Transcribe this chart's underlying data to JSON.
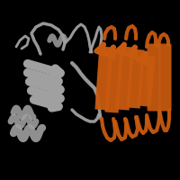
{
  "background_color": "#000000",
  "gray_color": "#a0a0a0",
  "orange_color": "#c85a10",
  "figsize": [
    2.0,
    2.0
  ],
  "dpi": 100
}
